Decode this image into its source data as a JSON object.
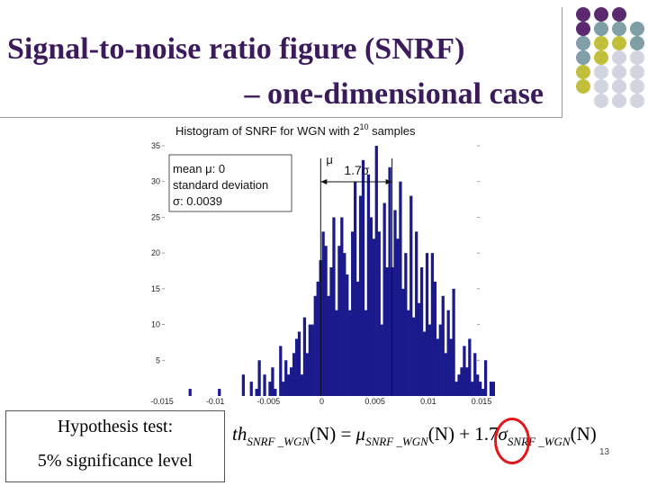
{
  "slide": {
    "title_line1": "Signal-to-noise ratio figure (SNRF)",
    "title_line2": "– one-dimensional case",
    "slide_number": "13",
    "decor_colors": [
      "#5b2a6e",
      "#7f9ea6",
      "#c2bf3a",
      "#d2d4e0"
    ]
  },
  "hypothesis": {
    "line1": "Hypothesis test:",
    "line2": "5% significance level"
  },
  "formula": {
    "lhs": "th",
    "lhs_sub": "SNRF _WGN",
    "arg": "(N)",
    "eq": " = ",
    "mu": "μ",
    "mu_sub": "SNRF _WGN",
    "plus": " + ",
    "coef": "1.7",
    "sigma": "σ",
    "sigma_sub": "SNRF _WGN"
  },
  "chart_data": {
    "type": "bar",
    "title": "Histogram of SNRF for WGN with 2",
    "title_sup": "10",
    "title_end": " samples",
    "xlim": [
      -0.015,
      0.015
    ],
    "ylim": [
      0,
      35
    ],
    "x_ticks": [
      "-0.015",
      "-0.01",
      "-0.005",
      "0",
      "0.005",
      "0.01",
      "0.015"
    ],
    "y_ticks": [
      "0",
      "5",
      "10",
      "15",
      "20",
      "25",
      "30",
      "35"
    ],
    "bar_color": "#1a1a8c",
    "bins": {
      "start": -0.0125,
      "width": 0.00025,
      "counts": [
        1,
        0,
        0,
        0,
        0,
        0,
        0,
        0,
        0,
        0,
        0,
        1,
        0,
        0,
        0,
        0,
        0,
        0,
        0,
        0,
        3,
        0,
        0,
        2,
        0,
        1,
        5,
        0,
        3,
        0,
        2,
        4,
        1,
        0,
        7,
        2,
        5,
        3,
        4,
        6,
        8,
        9,
        3,
        11,
        6,
        10,
        10,
        14,
        16,
        19,
        23,
        21,
        14,
        18,
        25,
        12,
        21,
        25,
        20,
        17,
        12,
        23,
        30,
        16,
        28,
        33,
        12,
        31,
        25,
        22,
        35,
        23,
        10,
        27,
        18,
        32,
        18,
        26,
        22,
        30,
        15,
        20,
        12,
        28,
        11,
        23,
        13,
        18,
        9,
        20,
        10,
        20,
        16,
        8,
        10,
        14,
        6,
        12,
        8,
        15,
        2,
        3,
        4,
        7,
        4,
        8,
        2,
        6,
        3,
        2,
        1,
        5,
        0,
        2,
        2,
        1,
        3,
        2,
        1,
        0,
        1,
        0,
        1
      ]
    },
    "mean_line_x": -0.0001,
    "threshold_line_x": 0.0066,
    "legend": {
      "line1": "mean μ: 0",
      "line2": "standard deviation",
      "line3": "σ: 0.0039"
    },
    "annotations": {
      "mu_label": "μ",
      "span_label": "1.7σ"
    }
  }
}
